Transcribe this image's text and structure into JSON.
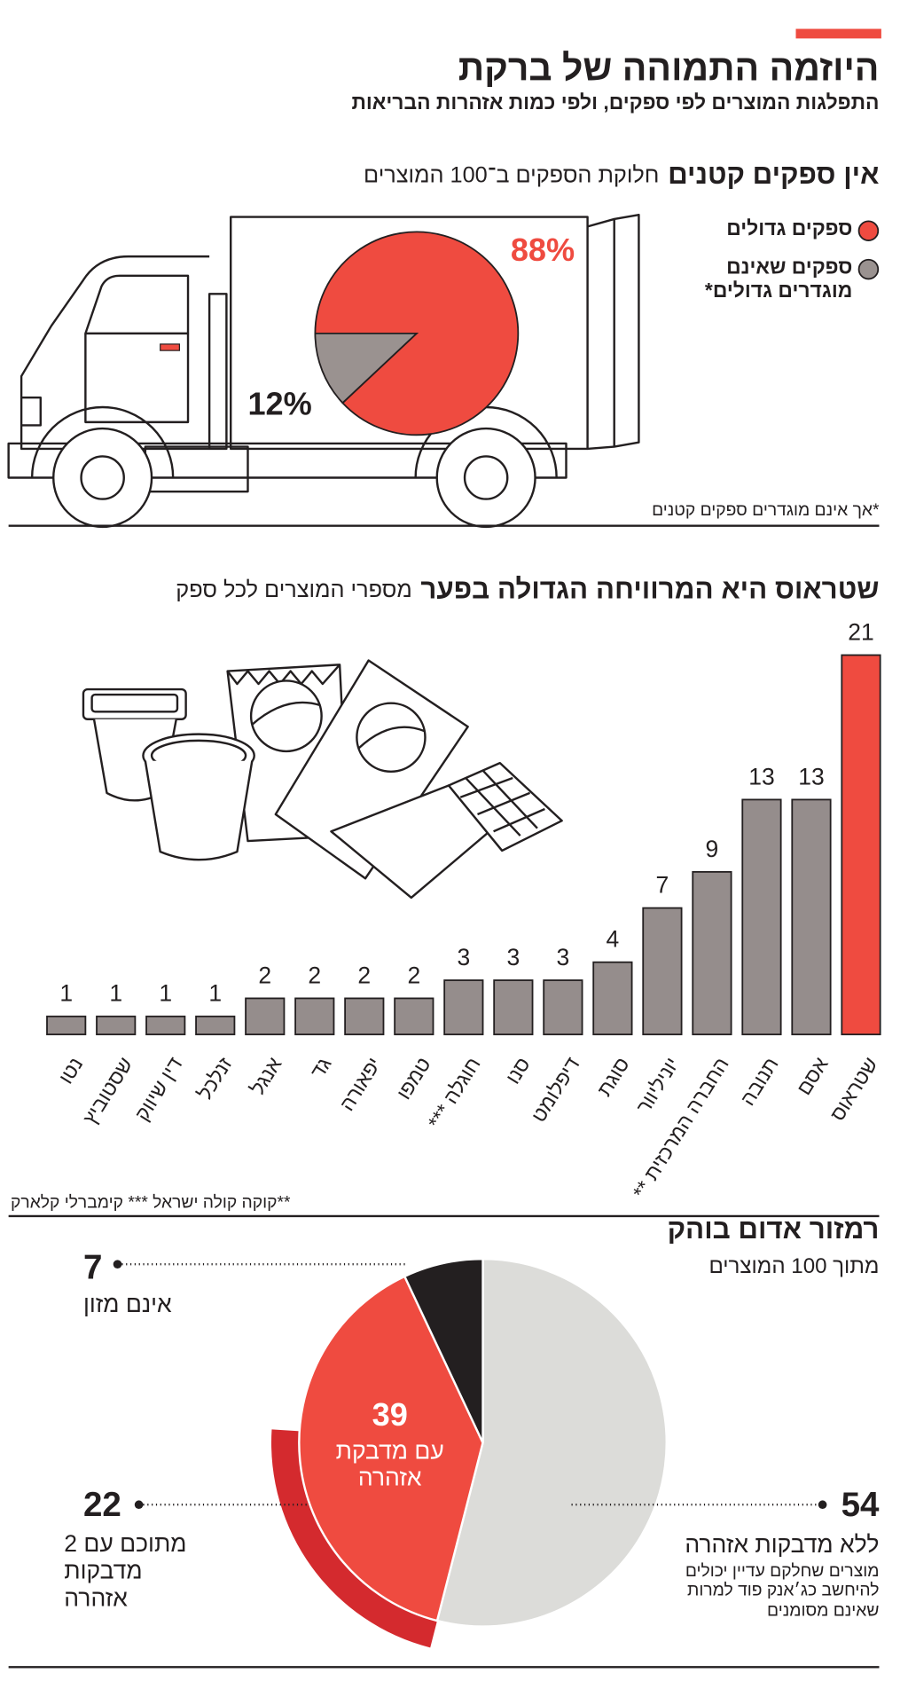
{
  "header": {
    "title": "היוזמה התמוהה של ברקת",
    "subtitle": "התפלגות המוצרים לפי ספקים, ולפי כמות אזהרות הבריאות"
  },
  "chart_data": [
    {
      "type": "pie",
      "title": "אין ספקים קטנים",
      "subtitle": "חלוקת הספקים ב־100 המוצרים",
      "labels": [
        "ספקים גדולים",
        "ספקים שאינם מוגדרים גדולים*"
      ],
      "values": [
        88,
        12
      ],
      "value_labels": [
        "88%",
        "12%"
      ],
      "colors": [
        "#ef4b40",
        "#9a9290"
      ],
      "note": "*אך אינם מוגדרים ספקים קטנים"
    },
    {
      "type": "bar",
      "title": "שטראוס היא המרוויחה הגדולה בפער",
      "subtitle": "מספרי המוצרים לכל ספק",
      "categories": [
        "נטו",
        "שסטוביץ",
        "דין שיווק",
        "זנלכל",
        "אנגל",
        "גד",
        "יפאורה",
        "טמפו",
        "חוגלה ***",
        "סנו",
        "דיפלומט",
        "סוגת",
        "יוניליוור",
        "החברה המרכזית **",
        "תנובה",
        "אסם",
        "שטראוס"
      ],
      "values": [
        1,
        1,
        1,
        1,
        2,
        2,
        2,
        2,
        3,
        3,
        3,
        4,
        7,
        9,
        13,
        13,
        21
      ],
      "colors": [
        "#958d8c",
        "#958d8c",
        "#958d8c",
        "#958d8c",
        "#958d8c",
        "#958d8c",
        "#958d8c",
        "#958d8c",
        "#958d8c",
        "#958d8c",
        "#958d8c",
        "#958d8c",
        "#958d8c",
        "#958d8c",
        "#958d8c",
        "#958d8c",
        "#ef4b40"
      ],
      "note": "**קוקה קולה ישראל  *** קימברלי קלארק"
    },
    {
      "type": "pie",
      "title": "רמזור אדום בוהק",
      "subtitle": "מתוך 100 המוצרים",
      "labels": [
        "ללא מדבקות אזהרה",
        "עם מדבקת אזהרה",
        "אינם מזון"
      ],
      "values": [
        54,
        39,
        7
      ],
      "colors": [
        "#dcdcd9",
        "#ef4b40",
        "#231f20"
      ],
      "subset": {
        "value": 22,
        "label": "מתוכם עם 2 מדבקות אזהרה",
        "color": "#d42a2e"
      },
      "note": "מוצרים שחלקם עדיין יכולים להיחשב כג׳אנק פוד למרות שאינם מסומנים"
    }
  ]
}
